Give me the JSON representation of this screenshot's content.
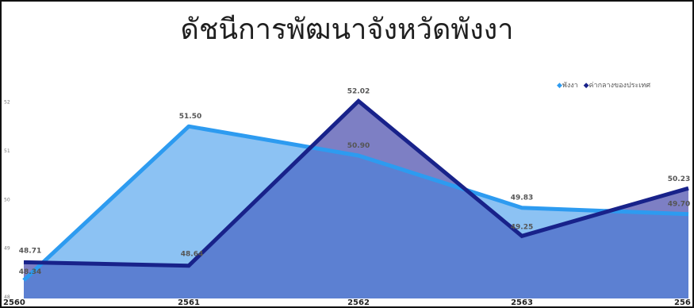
{
  "chart_data": {
    "type": "area",
    "title": "ดัชนีการพัฒนาจังหวัดพังงา",
    "xlabel": "",
    "ylabel": "",
    "categories": [
      "2560",
      "2561",
      "2562",
      "2563",
      "256"
    ],
    "yticks": [
      "48",
      "49",
      "50",
      "51",
      "52"
    ],
    "ylim": [
      48,
      52.4
    ],
    "grid": false,
    "legend_position": "top-right",
    "series": [
      {
        "name": "พังงา",
        "values": [
          48.34,
          51.5,
          50.9,
          49.83,
          49.7
        ],
        "labels": [
          "48.34",
          "51.50",
          "50.90",
          "49.83",
          "49.70"
        ],
        "line_color": "#2d9bf0",
        "fill_color": "#8cc2f3"
      },
      {
        "name": "ค่ากลางของประเทศ",
        "values": [
          48.71,
          48.64,
          52.02,
          49.25,
          50.23
        ],
        "labels": [
          "48.71",
          "48.64",
          "52.02",
          "49.25",
          "50.23"
        ],
        "line_color": "#18228a",
        "fill_color": "#7d7fc4"
      }
    ],
    "overlap_color": "#5c80d2"
  }
}
